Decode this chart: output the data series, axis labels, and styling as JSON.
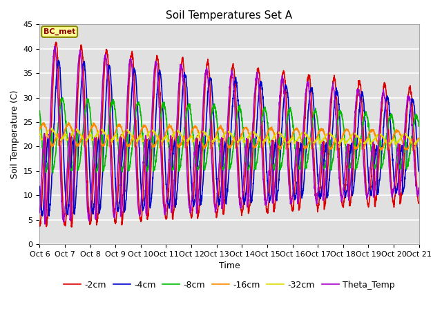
{
  "title": "Soil Temperatures Set A",
  "xlabel": "Time",
  "ylabel": "Soil Temperature (C)",
  "ylim": [
    0,
    45
  ],
  "yticks": [
    0,
    5,
    10,
    15,
    20,
    25,
    30,
    35,
    40,
    45
  ],
  "xtick_labels": [
    "Oct 6",
    "Oct 7",
    "Oct 8",
    "Oct 9",
    "Oct 10",
    "Oct 11",
    "Oct 12",
    "Oct 13",
    "Oct 14",
    "Oct 15",
    "Oct 16",
    "Oct 17",
    "Oct 18",
    "Oct 19",
    "Oct 20",
    "Oct 21"
  ],
  "series_order": [
    "-2cm",
    "-4cm",
    "-8cm",
    "-16cm",
    "-32cm",
    "Theta_Temp"
  ],
  "colors": {
    "-2cm": "#dd0000",
    "-4cm": "#0000cc",
    "-8cm": "#00bb00",
    "-16cm": "#ff8800",
    "-32cm": "#dddd00",
    "Theta_Temp": "#aa00cc"
  },
  "lw": 1.2,
  "annotation_text": "BC_met",
  "bg_color": "#e0e0e0",
  "grid_color": "#ffffff",
  "fig_bg": "#ffffff",
  "title_fontsize": 11,
  "label_fontsize": 9,
  "tick_fontsize": 8,
  "legend_fontsize": 9
}
